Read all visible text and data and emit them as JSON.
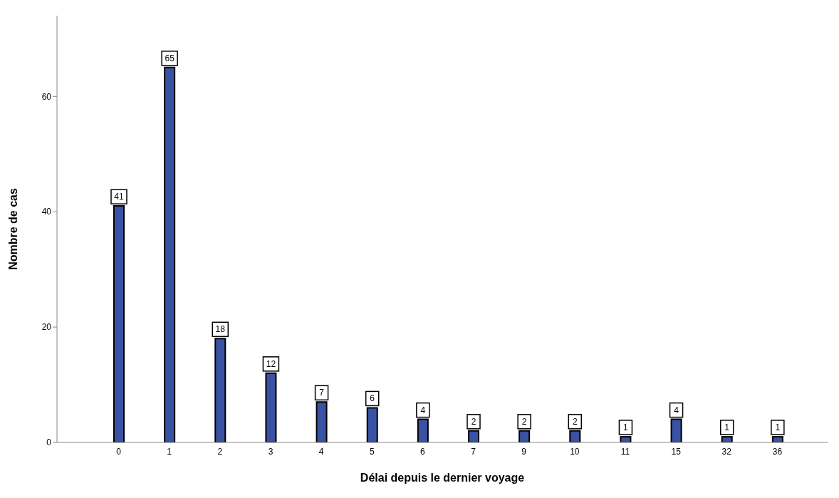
{
  "chart_data": {
    "type": "bar",
    "xlabel": "Délai depuis le dernier voyage",
    "ylabel": "Nombre de cas",
    "categories": [
      "0",
      "1",
      "2",
      "3",
      "4",
      "5",
      "6",
      "7",
      "9",
      "10",
      "11",
      "15",
      "32",
      "36"
    ],
    "values": [
      41,
      65,
      18,
      12,
      7,
      6,
      4,
      2,
      2,
      2,
      1,
      4,
      1,
      1
    ],
    "color": "#3a52a3",
    "ylim": [
      0,
      74
    ],
    "yticks": [
      0,
      20,
      40,
      60
    ],
    "grid": false,
    "legend": false,
    "data_labels": true
  }
}
